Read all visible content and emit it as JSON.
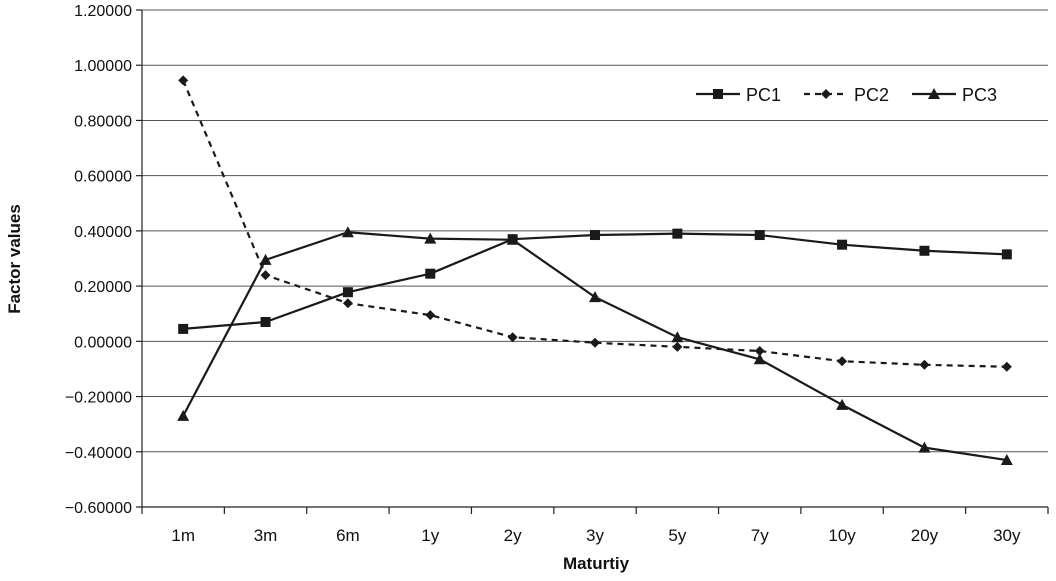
{
  "chart_data": {
    "type": "line",
    "xlabel": "Maturtiy",
    "ylabel": "Factor values",
    "categories": [
      "1m",
      "3m",
      "6m",
      "1y",
      "2y",
      "3y",
      "5y",
      "7y",
      "10y",
      "20y",
      "30y"
    ],
    "ylim": [
      -0.6,
      1.2
    ],
    "yticks": [
      "1.20000",
      "1.00000",
      "0.80000",
      "0.60000",
      "0.40000",
      "0.20000",
      "0.00000",
      "−0.20000",
      "−0.40000",
      "−0.60000"
    ],
    "ytick_values": [
      1.2,
      1.0,
      0.8,
      0.6,
      0.4,
      0.2,
      0.0,
      -0.2,
      -0.4,
      -0.6
    ],
    "grid": true,
    "legend_position": "top-right",
    "series": [
      {
        "name": "PC1",
        "marker": "square",
        "line": "solid",
        "values": [
          0.045,
          0.07,
          0.178,
          0.245,
          0.37,
          0.385,
          0.39,
          0.385,
          0.35,
          0.328,
          0.315
        ]
      },
      {
        "name": "PC2",
        "marker": "diamond",
        "line": "dashed",
        "values": [
          0.945,
          0.24,
          0.138,
          0.095,
          0.015,
          -0.005,
          -0.02,
          -0.035,
          -0.072,
          -0.085,
          -0.092
        ]
      },
      {
        "name": "PC3",
        "marker": "triangle",
        "line": "solid",
        "values": [
          -0.27,
          0.295,
          0.395,
          0.372,
          0.368,
          0.16,
          0.015,
          -0.065,
          -0.23,
          -0.385,
          -0.43
        ]
      }
    ],
    "colors": {
      "line": "#1a1a1a",
      "grid": "#555555",
      "background": "#ffffff"
    }
  }
}
